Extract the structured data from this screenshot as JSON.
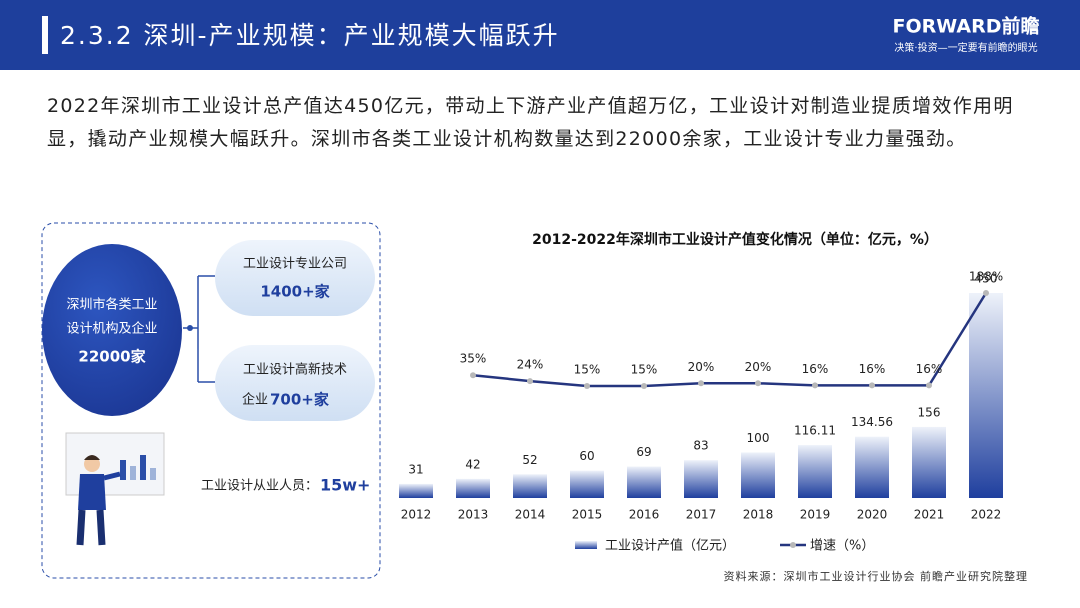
{
  "header": {
    "title": "2.3.2 深圳-产业规模：产业规模大幅跃升",
    "logo": "FORWARD前瞻",
    "slogan": "决策·投资—一定要有前瞻的眼光"
  },
  "paragraph": "2022年深圳市工业设计总产值达450亿元，带动上下游产业产值超万亿，工业设计对制造业提质增效作用明显，撬动产业规模大幅跃升。深圳市各类工业设计机构数量达到22000余家，工业设计专业力量强劲。",
  "infographic": {
    "center": {
      "line1": "深圳市各类工业",
      "line2": "设计机构及企业",
      "value": "22000家"
    },
    "box1": {
      "label": "工业设计专业公司",
      "value": "1400+家"
    },
    "box2": {
      "label": "工业设计高新技术",
      "prefix": "企业",
      "value": "700+家"
    },
    "staff": {
      "label": "工业设计从业人员：",
      "value": "15w+"
    }
  },
  "chart_data": {
    "type": "bar",
    "title": "2012-2022年深圳市工业设计产值变化情况（单位：亿元，%）",
    "categories": [
      "2012",
      "2013",
      "2014",
      "2015",
      "2016",
      "2017",
      "2018",
      "2019",
      "2020",
      "2021",
      "2022"
    ],
    "series": [
      {
        "name": "工业设计产值（亿元）",
        "type": "bar",
        "color": "#1f3f9e",
        "values": [
          31,
          42,
          52,
          60,
          69,
          83,
          100,
          116.11,
          134.56,
          156,
          450
        ]
      },
      {
        "name": "增速（%）",
        "type": "line",
        "axis": "y2",
        "color": "#25357f",
        "values": [
          null,
          35,
          24,
          15,
          15,
          20,
          20,
          16,
          16,
          16,
          188
        ],
        "value_labels": [
          null,
          "35%",
          "24%",
          "15%",
          "15%",
          "20%",
          "20%",
          "16%",
          "16%",
          "16%",
          "188%"
        ]
      }
    ],
    "ylim": [
      0,
      450
    ],
    "y2lim": [
      0,
      188
    ]
  },
  "source": "资料来源：深圳市工业设计行业协会 前瞻产业研究院整理"
}
